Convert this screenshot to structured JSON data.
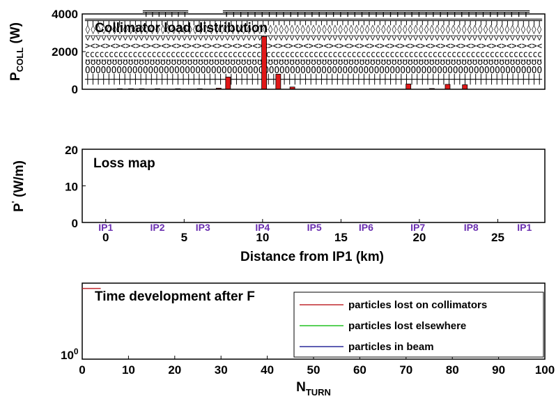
{
  "chart_data": [
    {
      "type": "bar",
      "title": "Collimator load distribution",
      "ylabel": "P",
      "ylabel_sub": "COLL",
      "ylabel_unit": " (W)",
      "ylim": [
        0,
        4000
      ],
      "xlim": [
        -1.5,
        28
      ],
      "yticks": [
        0,
        2000,
        4000
      ],
      "bar_color": "#e01818",
      "bars": [
        {
          "x": 0.9,
          "value": 30
        },
        {
          "x": 1.6,
          "value": 30
        },
        {
          "x": 2.3,
          "value": 30
        },
        {
          "x": 3.3,
          "value": 30
        },
        {
          "x": 4.6,
          "value": 30
        },
        {
          "x": 6.0,
          "value": 30
        },
        {
          "x": 7.2,
          "value": 60
        },
        {
          "x": 7.8,
          "value": 650
        },
        {
          "x": 10.1,
          "value": 2800
        },
        {
          "x": 11.0,
          "value": 800
        },
        {
          "x": 11.9,
          "value": 120
        },
        {
          "x": 19.3,
          "value": 280
        },
        {
          "x": 20.8,
          "value": 40
        },
        {
          "x": 21.8,
          "value": 260
        },
        {
          "x": 22.9,
          "value": 240
        }
      ]
    },
    {
      "type": "line",
      "title": "Loss map",
      "ylabel": "P",
      "ylabel_sup": "'",
      "ylabel_unit": " (W/m)",
      "xlabel": "Distance from IP1 (km)",
      "xlim": [
        -1.5,
        28
      ],
      "ylim": [
        0,
        20
      ],
      "yticks": [
        0,
        10,
        20
      ],
      "xticks": [
        0,
        5,
        10,
        15,
        20,
        25
      ],
      "ip_markers": [
        {
          "label": "IP1",
          "x": 0.0
        },
        {
          "label": "IP2",
          "x": 3.3
        },
        {
          "label": "IP3",
          "x": 6.2
        },
        {
          "label": "IP4",
          "x": 10.0
        },
        {
          "label": "IP5",
          "x": 13.3
        },
        {
          "label": "IP6",
          "x": 16.6
        },
        {
          "label": "IP7",
          "x": 19.9
        },
        {
          "label": "IP8",
          "x": 23.3
        },
        {
          "label": "IP1",
          "x": 26.7
        }
      ],
      "series": []
    },
    {
      "type": "line",
      "title": "Time development after F",
      "xlabel": "N",
      "xlabel_sub": "TURN",
      "xlim": [
        0,
        100
      ],
      "xticks": [
        0,
        10,
        20,
        30,
        40,
        50,
        60,
        70,
        80,
        90,
        100
      ],
      "ytick_label_base": "10",
      "ytick_label_exp": "0",
      "legend_position": "lower-right",
      "series": [
        {
          "name": "particles lost on collimators",
          "color": "#c0282e",
          "x": [
            0,
            4
          ],
          "y": [
            0.93,
            0.93
          ]
        },
        {
          "name": "particles lost elsewhere",
          "color": "#22c222",
          "x": [],
          "y": []
        },
        {
          "name": "particles in beam",
          "color": "#2a2a9a",
          "x": [],
          "y": []
        }
      ]
    }
  ]
}
